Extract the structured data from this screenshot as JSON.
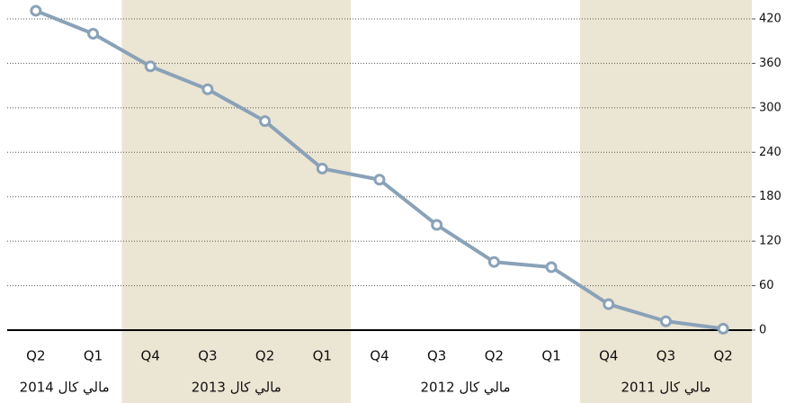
{
  "chart_data": {
    "type": "line",
    "categories": [
      "Q2",
      "Q3",
      "Q4",
      "Q1",
      "Q2",
      "Q3",
      "Q4",
      "Q1",
      "Q2",
      "Q3",
      "Q4",
      "Q1",
      "Q2"
    ],
    "x_reversed": true,
    "groups": [
      {
        "label": "مالي كال 2011",
        "count": 3,
        "shaded": true
      },
      {
        "label": "مالي كال 2012",
        "count": 4,
        "shaded": false
      },
      {
        "label": "مالي كال 2013",
        "count": 4,
        "shaded": true
      },
      {
        "label": "مالي كال 2014",
        "count": 2,
        "shaded": false
      }
    ],
    "series": [
      {
        "color": "#8aa2b8",
        "values": [
          2,
          12,
          35,
          85,
          92,
          142,
          203,
          218,
          282,
          325,
          356,
          400,
          431
        ]
      }
    ],
    "ylim": [
      0,
      420
    ],
    "yticks": [
      0,
      60,
      120,
      180,
      240,
      300,
      360,
      420
    ],
    "grid": true,
    "shade_color": "#ebe5d3"
  }
}
